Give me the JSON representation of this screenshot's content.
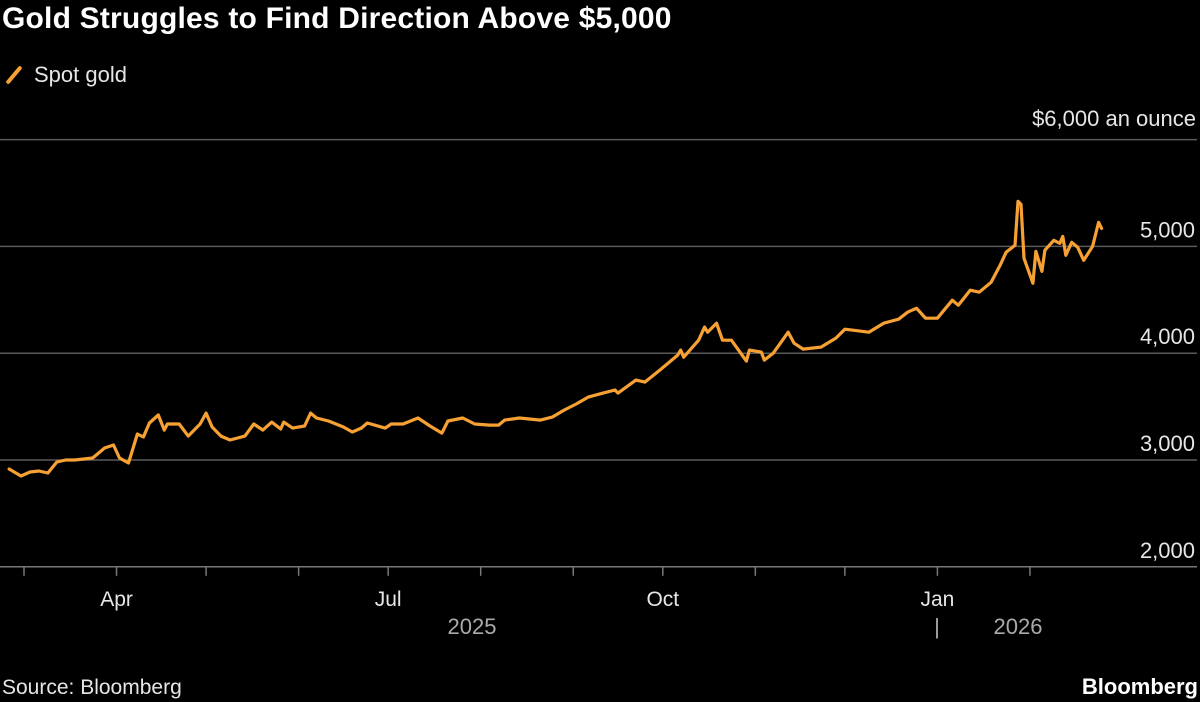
{
  "chart_data": {
    "type": "line",
    "title": "Gold Struggles to Find Direction Above $5,000",
    "legend": {
      "placement": "top-left",
      "entries": [
        "Spot gold"
      ]
    },
    "y_unit_label": "$6,000 an ounce",
    "ylim": [
      2000,
      6000
    ],
    "y_ticks": [
      {
        "value": 6000,
        "label": ""
      },
      {
        "value": 5000,
        "label": "5,000"
      },
      {
        "value": 4000,
        "label": "4,000"
      },
      {
        "value": 3000,
        "label": "3,000"
      },
      {
        "value": 2000,
        "label": "2,000"
      }
    ],
    "x_ticks": [
      {
        "date": "2025-04-01",
        "label": "Apr"
      },
      {
        "date": "2025-07-01",
        "label": "Jul"
      },
      {
        "date": "2025-10-01",
        "label": "Oct"
      },
      {
        "date": "2026-01-01",
        "label": "Jan"
      }
    ],
    "year_labels": [
      {
        "label": "2025"
      },
      {
        "label": "|"
      },
      {
        "label": "2026"
      }
    ],
    "grid": true,
    "colors": {
      "series": "#f7a134",
      "grid": "#5a5a5a",
      "background": "#000000"
    },
    "series": [
      {
        "name": "Spot gold",
        "points": [
          [
            "2025-02-24",
            2916
          ],
          [
            "2025-02-28",
            2850
          ],
          [
            "2025-03-03",
            2888
          ],
          [
            "2025-03-06",
            2897
          ],
          [
            "2025-03-09",
            2878
          ],
          [
            "2025-03-12",
            2981
          ],
          [
            "2025-03-15",
            3000
          ],
          [
            "2025-03-18",
            3000
          ],
          [
            "2025-03-24",
            3019
          ],
          [
            "2025-03-28",
            3112
          ],
          [
            "2025-03-31",
            3140
          ],
          [
            "2025-04-02",
            3019
          ],
          [
            "2025-04-05",
            2972
          ],
          [
            "2025-04-08",
            3243
          ],
          [
            "2025-04-10",
            3215
          ],
          [
            "2025-04-12",
            3346
          ],
          [
            "2025-04-15",
            3421
          ],
          [
            "2025-04-17",
            3280
          ],
          [
            "2025-04-18",
            3337
          ],
          [
            "2025-04-22",
            3337
          ],
          [
            "2025-04-25",
            3224
          ],
          [
            "2025-04-29",
            3337
          ],
          [
            "2025-05-01",
            3439
          ],
          [
            "2025-05-03",
            3309
          ],
          [
            "2025-05-06",
            3224
          ],
          [
            "2025-05-09",
            3187
          ],
          [
            "2025-05-14",
            3224
          ],
          [
            "2025-05-17",
            3337
          ],
          [
            "2025-05-20",
            3280
          ],
          [
            "2025-05-23",
            3355
          ],
          [
            "2025-05-26",
            3290
          ],
          [
            "2025-05-27",
            3355
          ],
          [
            "2025-05-30",
            3299
          ],
          [
            "2025-06-03",
            3318
          ],
          [
            "2025-06-05",
            3439
          ],
          [
            "2025-06-07",
            3393
          ],
          [
            "2025-06-11",
            3365
          ],
          [
            "2025-06-16",
            3309
          ],
          [
            "2025-06-19",
            3262
          ],
          [
            "2025-06-22",
            3299
          ],
          [
            "2025-06-24",
            3346
          ],
          [
            "2025-06-30",
            3299
          ],
          [
            "2025-07-02",
            3337
          ],
          [
            "2025-07-06",
            3337
          ],
          [
            "2025-07-11",
            3393
          ],
          [
            "2025-07-15",
            3318
          ],
          [
            "2025-07-19",
            3252
          ],
          [
            "2025-07-21",
            3365
          ],
          [
            "2025-07-26",
            3393
          ],
          [
            "2025-07-30",
            3337
          ],
          [
            "2025-08-04",
            3327
          ],
          [
            "2025-08-07",
            3327
          ],
          [
            "2025-08-09",
            3374
          ],
          [
            "2025-08-14",
            3393
          ],
          [
            "2025-08-21",
            3374
          ],
          [
            "2025-08-25",
            3402
          ],
          [
            "2025-08-29",
            3468
          ],
          [
            "2025-09-02",
            3524
          ],
          [
            "2025-09-06",
            3589
          ],
          [
            "2025-09-11",
            3626
          ],
          [
            "2025-09-15",
            3655
          ],
          [
            "2025-09-16",
            3626
          ],
          [
            "2025-09-22",
            3748
          ],
          [
            "2025-09-25",
            3729
          ],
          [
            "2025-09-30",
            3842
          ],
          [
            "2025-10-06",
            3982
          ],
          [
            "2025-10-07",
            4029
          ],
          [
            "2025-10-08",
            3963
          ],
          [
            "2025-10-13",
            4122
          ],
          [
            "2025-10-15",
            4244
          ],
          [
            "2025-10-16",
            4197
          ],
          [
            "2025-10-19",
            4281
          ],
          [
            "2025-10-21",
            4122
          ],
          [
            "2025-10-24",
            4122
          ],
          [
            "2025-10-29",
            3926
          ],
          [
            "2025-10-30",
            4029
          ],
          [
            "2025-11-03",
            4010
          ],
          [
            "2025-11-04",
            3935
          ],
          [
            "2025-11-07",
            4000
          ],
          [
            "2025-11-12",
            4197
          ],
          [
            "2025-11-14",
            4094
          ],
          [
            "2025-11-17",
            4038
          ],
          [
            "2025-11-23",
            4057
          ],
          [
            "2025-11-28",
            4141
          ],
          [
            "2025-12-01",
            4225
          ],
          [
            "2025-12-09",
            4197
          ],
          [
            "2025-12-14",
            4281
          ],
          [
            "2025-12-19",
            4318
          ],
          [
            "2025-12-22",
            4384
          ],
          [
            "2025-12-25",
            4421
          ],
          [
            "2025-12-28",
            4328
          ],
          [
            "2026-01-01",
            4328
          ],
          [
            "2026-01-06",
            4496
          ],
          [
            "2026-01-08",
            4449
          ],
          [
            "2026-01-12",
            4590
          ],
          [
            "2026-01-15",
            4571
          ],
          [
            "2026-01-19",
            4664
          ],
          [
            "2026-01-22",
            4823
          ],
          [
            "2026-01-24",
            4945
          ],
          [
            "2026-01-27",
            5010
          ],
          [
            "2026-01-28",
            5422
          ],
          [
            "2026-01-29",
            5393
          ],
          [
            "2026-01-30",
            4889
          ],
          [
            "2026-02-02",
            4655
          ],
          [
            "2026-02-03",
            4954
          ],
          [
            "2026-02-05",
            4767
          ],
          [
            "2026-02-06",
            4964
          ],
          [
            "2026-02-09",
            5057
          ],
          [
            "2026-02-11",
            5029
          ],
          [
            "2026-02-12",
            5094
          ],
          [
            "2026-02-13",
            4917
          ],
          [
            "2026-02-15",
            5038
          ],
          [
            "2026-02-17",
            4992
          ],
          [
            "2026-02-19",
            4870
          ],
          [
            "2026-02-22",
            5001
          ],
          [
            "2026-02-24",
            5225
          ],
          [
            "2026-02-25",
            5169
          ]
        ]
      }
    ]
  },
  "footer": {
    "source": "Source: Bloomberg",
    "brand": "Bloomberg"
  }
}
